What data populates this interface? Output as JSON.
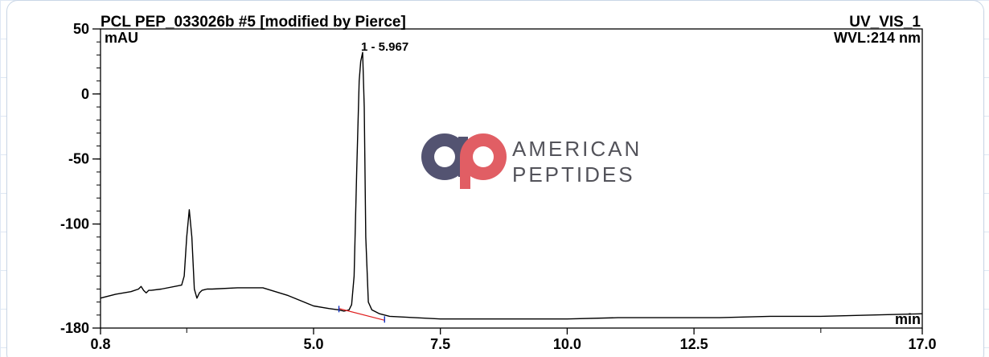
{
  "chart_data": {
    "type": "line",
    "title": "PCL PEP_033026b #5 [modified by Pierce]",
    "title_right": "UV_VIS_1",
    "wavelength_label": "WVL:214 nm",
    "ylabel": "mAU",
    "xlabel": "min",
    "xlim": [
      0.8,
      17.0
    ],
    "ylim": [
      -180,
      50
    ],
    "x_ticks": [
      {
        "v": 0.8,
        "label": "0.8"
      },
      {
        "v": 5.0,
        "label": "5.0"
      },
      {
        "v": 7.5,
        "label": "7.5"
      },
      {
        "v": 10.0,
        "label": "10.0"
      },
      {
        "v": 12.5,
        "label": "12.5"
      },
      {
        "v": 17.0,
        "label": "17.0"
      }
    ],
    "y_ticks": [
      {
        "v": 50,
        "label": "50"
      },
      {
        "v": 0,
        "label": "0"
      },
      {
        "v": -50,
        "label": "-50"
      },
      {
        "v": -100,
        "label": "-100"
      },
      {
        "v": -180,
        "label": "-180"
      }
    ],
    "peak_label": "1 - 5.967",
    "peak": {
      "x": 5.967,
      "y": 32
    },
    "series": [
      {
        "color": "#000000",
        "x": [
          0.8,
          1.1,
          1.4,
          1.55,
          1.6,
          1.65,
          1.7,
          1.75,
          1.8,
          2.0,
          2.4,
          2.45,
          2.5,
          2.55,
          2.6,
          2.65,
          2.7,
          2.75,
          2.8,
          2.9,
          3.0,
          3.5,
          4.0,
          4.5,
          5.0,
          5.3,
          5.5,
          5.6,
          5.7,
          5.75,
          5.8,
          5.85,
          5.9,
          5.93,
          5.967,
          6.0,
          6.03,
          6.08,
          6.15,
          6.3,
          6.5,
          7.0,
          7.5,
          8.0,
          8.5,
          9.0,
          10.0,
          11.0,
          12.0,
          13.0,
          14.0,
          15.0,
          16.0,
          17.0
        ],
        "y": [
          -157,
          -154,
          -152,
          -150,
          -148,
          -151,
          -153,
          -151,
          -151,
          -150,
          -147,
          -140,
          -110,
          -89,
          -110,
          -150,
          -157,
          -153,
          -151,
          -150,
          -150,
          -149,
          -149,
          -155,
          -163,
          -165,
          -166,
          -167,
          -166,
          -162,
          -140,
          -60,
          10,
          25,
          32,
          -10,
          -110,
          -160,
          -166,
          -169,
          -171,
          -172,
          -173,
          -173,
          -173,
          -173,
          -173,
          -172,
          -172,
          -172,
          -171,
          -171,
          -170,
          -169
        ]
      }
    ],
    "baseline": {
      "color": "#e02020",
      "x": [
        5.5,
        6.4
      ],
      "y": [
        -165,
        -174
      ]
    },
    "integration_marks": [
      {
        "x": 5.5,
        "y": -166
      },
      {
        "x": 6.4,
        "y": -174
      }
    ]
  },
  "watermark": {
    "line1": "AMERICAN",
    "line2": "PEPTIDES",
    "circle_color": "#4a4a6a",
    "p_color": "#e0565c",
    "text_color": "#4a4a52"
  }
}
